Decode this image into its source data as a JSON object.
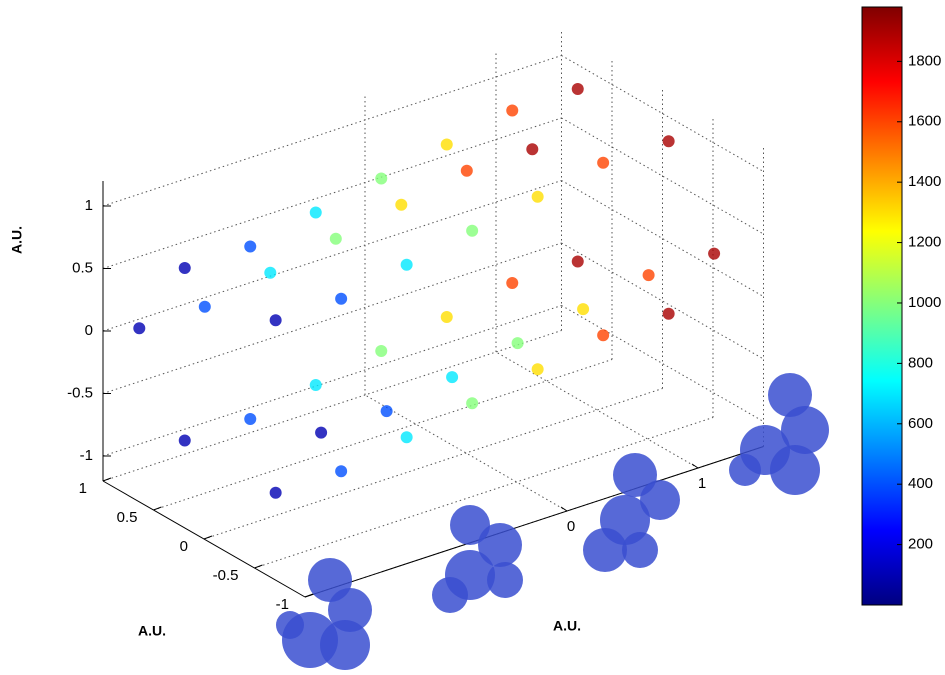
{
  "chart_data": {
    "type": "scatter3d",
    "xlabel": "A.U.",
    "ylabel": "A.U.",
    "zlabel": "A.U.",
    "xlim": [
      -2,
      1.5
    ],
    "ylim": [
      -1,
      1
    ],
    "zlim": [
      -1.2,
      1.2
    ],
    "xticks": [
      0,
      1
    ],
    "yticks": [
      1,
      0.5,
      0,
      -0.5,
      -1
    ],
    "zticks": [
      1,
      0.5,
      0,
      -0.5,
      -1
    ],
    "grid": true,
    "clim": [
      0,
      1980
    ],
    "cticks": [
      200,
      400,
      600,
      800,
      1000,
      1200,
      1400,
      1600,
      1800
    ],
    "colormap": "jet",
    "x": [
      -1.8,
      -1.8,
      -1.8,
      -1.8,
      -1.8,
      -1.8,
      -1.3,
      -1.3,
      -1.3,
      -1.3,
      -1.3,
      -1.3,
      -0.8,
      -0.8,
      -0.8,
      -0.8,
      -0.8,
      -0.8,
      -0.3,
      -0.3,
      -0.3,
      -0.3,
      -0.3,
      -0.3,
      0.2,
      0.2,
      0.2,
      0.2,
      0.2,
      0.2,
      0.7,
      0.7,
      0.7,
      0.7,
      0.7,
      0.7,
      1.2,
      1.2,
      1.2,
      1.2,
      1.2,
      1.2
    ],
    "y": [
      0.9,
      0.45,
      -0.45,
      -0.9,
      -0.45,
      0.45,
      0.9,
      0.45,
      -0.45,
      -0.9,
      -0.45,
      0.45,
      0.9,
      0.45,
      -0.45,
      -0.9,
      -0.45,
      0.45,
      0.9,
      0.45,
      -0.45,
      -0.9,
      -0.45,
      0.45,
      0.9,
      0.45,
      -0.45,
      -0.9,
      -0.45,
      0.45,
      0.9,
      0.45,
      -0.45,
      -0.9,
      -0.45,
      0.45,
      0.9,
      0.45,
      -0.45,
      -0.9,
      -0.45,
      0.45
    ],
    "z": [
      0,
      0.69,
      0.69,
      0,
      -0.69,
      -0.69,
      0,
      0.69,
      0.69,
      0,
      -0.69,
      -0.69,
      0.1,
      0.79,
      0.79,
      0.1,
      -0.59,
      -0.59,
      0.2,
      0.89,
      0.89,
      0.2,
      -0.49,
      -0.49,
      0.3,
      0.99,
      0.99,
      0.3,
      -0.39,
      -0.39,
      0.4,
      1.09,
      1.09,
      0.4,
      -0.29,
      -0.29,
      0.4,
      1.09,
      1.09,
      0.4,
      -0.29,
      -0.29
    ],
    "c": [
      100,
      100,
      100,
      100,
      100,
      100,
      400,
      400,
      400,
      400,
      400,
      400,
      700,
      700,
      700,
      700,
      700,
      700,
      1000,
      1000,
      1000,
      1000,
      1000,
      1000,
      1300,
      1300,
      1300,
      1300,
      1300,
      1300,
      1600,
      1600,
      1600,
      1600,
      1600,
      1600,
      1900,
      1900,
      1900,
      1900,
      1900,
      1900
    ]
  }
}
